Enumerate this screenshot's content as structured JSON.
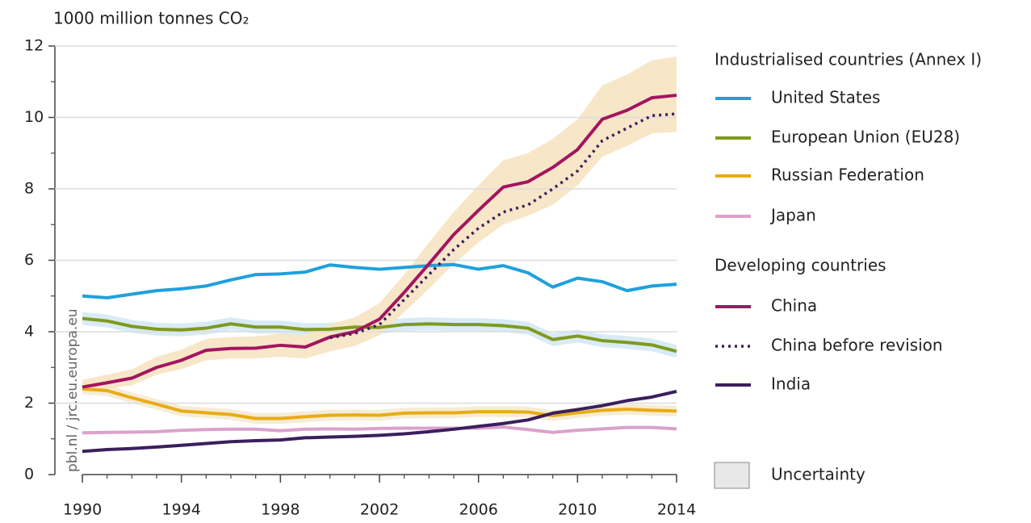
{
  "chart_data": {
    "type": "line",
    "ylabel": "1000 million tonnes CO₂",
    "source": "pbl.nl / jrc.eu.europa.eu",
    "legend_groups": [
      "Industrialised countries (Annex I)",
      "Developing countries"
    ],
    "uncertainty_label": "Uncertainty",
    "x": [
      1990,
      1991,
      1992,
      1993,
      1994,
      1995,
      1996,
      1997,
      1998,
      1999,
      2000,
      2001,
      2002,
      2003,
      2004,
      2005,
      2006,
      2007,
      2008,
      2009,
      2010,
      2011,
      2012,
      2013,
      2014
    ],
    "xlim": [
      1990,
      2014
    ],
    "xticks": [
      1990,
      1994,
      1998,
      2002,
      2006,
      2010,
      2014
    ],
    "ylim": [
      0,
      12
    ],
    "yticks": [
      0,
      2,
      4,
      6,
      8,
      10,
      12
    ],
    "grid": true,
    "series": [
      {
        "name": "United States",
        "color": "#1ea1dc",
        "values": [
          5.0,
          4.95,
          5.05,
          5.15,
          5.2,
          5.28,
          5.45,
          5.6,
          5.62,
          5.67,
          5.87,
          5.8,
          5.75,
          5.8,
          5.85,
          5.88,
          5.75,
          5.85,
          5.65,
          5.25,
          5.5,
          5.4,
          5.15,
          5.28,
          5.33
        ]
      },
      {
        "name": "European Union (EU28)",
        "color": "#7f9a1e",
        "band_color": "#d8ebf6",
        "values": [
          4.37,
          4.3,
          4.15,
          4.07,
          4.05,
          4.1,
          4.22,
          4.13,
          4.13,
          4.06,
          4.07,
          4.13,
          4.12,
          4.2,
          4.22,
          4.2,
          4.2,
          4.17,
          4.1,
          3.78,
          3.88,
          3.75,
          3.7,
          3.63,
          3.45
        ],
        "upper": [
          4.55,
          4.48,
          4.33,
          4.25,
          4.23,
          4.28,
          4.4,
          4.31,
          4.31,
          4.24,
          4.25,
          4.31,
          4.3,
          4.38,
          4.4,
          4.38,
          4.38,
          4.35,
          4.28,
          3.96,
          4.06,
          3.93,
          3.88,
          3.81,
          3.63
        ],
        "lower": [
          4.19,
          4.12,
          3.97,
          3.89,
          3.87,
          3.92,
          4.04,
          3.95,
          3.95,
          3.88,
          3.89,
          3.95,
          3.94,
          4.02,
          4.04,
          4.02,
          4.02,
          3.99,
          3.92,
          3.6,
          3.7,
          3.57,
          3.52,
          3.45,
          3.27
        ]
      },
      {
        "name": "Russian Federation",
        "color": "#e8ac16",
        "band_color": "#f6ecd6",
        "values": [
          2.4,
          2.35,
          2.15,
          1.97,
          1.78,
          1.73,
          1.68,
          1.57,
          1.57,
          1.62,
          1.66,
          1.67,
          1.66,
          1.72,
          1.73,
          1.73,
          1.76,
          1.76,
          1.75,
          1.65,
          1.73,
          1.8,
          1.83,
          1.8,
          1.78
        ],
        "upper": [
          2.55,
          2.5,
          2.3,
          2.12,
          1.93,
          1.88,
          1.83,
          1.72,
          1.72,
          1.77,
          1.81,
          1.82,
          1.81,
          1.87,
          1.88,
          1.88,
          1.91,
          1.91,
          1.9,
          1.8,
          1.88,
          1.95,
          1.98,
          1.95,
          1.93
        ],
        "lower": [
          2.25,
          2.2,
          2.0,
          1.82,
          1.63,
          1.58,
          1.53,
          1.42,
          1.42,
          1.47,
          1.51,
          1.52,
          1.51,
          1.57,
          1.58,
          1.58,
          1.61,
          1.61,
          1.6,
          1.5,
          1.58,
          1.65,
          1.68,
          1.65,
          1.63
        ]
      },
      {
        "name": "Japan",
        "color": "#dba2cb",
        "values": [
          1.17,
          1.18,
          1.19,
          1.2,
          1.24,
          1.26,
          1.27,
          1.27,
          1.23,
          1.27,
          1.28,
          1.27,
          1.29,
          1.3,
          1.3,
          1.3,
          1.3,
          1.33,
          1.26,
          1.18,
          1.24,
          1.28,
          1.32,
          1.32,
          1.28
        ]
      },
      {
        "name": "China",
        "color": "#a3155f",
        "band_color": "#f8e6c8",
        "values": [
          2.45,
          2.57,
          2.7,
          3.0,
          3.2,
          3.48,
          3.53,
          3.54,
          3.62,
          3.57,
          3.85,
          4.0,
          4.35,
          5.1,
          5.9,
          6.72,
          7.4,
          8.05,
          8.2,
          8.6,
          9.1,
          9.95,
          10.2,
          10.55,
          10.62
        ],
        "upper": [
          2.65,
          2.8,
          2.95,
          3.3,
          3.5,
          3.8,
          3.85,
          3.87,
          3.95,
          3.9,
          4.2,
          4.4,
          4.8,
          5.6,
          6.5,
          7.35,
          8.1,
          8.8,
          9.0,
          9.4,
          9.95,
          10.9,
          11.2,
          11.6,
          11.7
        ],
        "lower": [
          2.3,
          2.4,
          2.5,
          2.8,
          2.95,
          3.2,
          3.25,
          3.25,
          3.3,
          3.25,
          3.45,
          3.6,
          3.9,
          4.55,
          5.2,
          5.9,
          6.5,
          7.0,
          7.25,
          7.55,
          8.1,
          8.9,
          9.2,
          9.55,
          9.6
        ]
      },
      {
        "name": "China before revision",
        "color": "#3b1f5c",
        "dash": true,
        "values": [
          null,
          null,
          null,
          null,
          null,
          null,
          null,
          null,
          null,
          null,
          3.83,
          3.95,
          4.2,
          4.9,
          5.6,
          6.3,
          6.9,
          7.35,
          7.55,
          8.0,
          8.5,
          9.35,
          9.7,
          10.05,
          10.1
        ]
      },
      {
        "name": "India",
        "color": "#3b1f5c",
        "values": [
          0.65,
          0.7,
          0.73,
          0.77,
          0.82,
          0.87,
          0.92,
          0.95,
          0.97,
          1.03,
          1.05,
          1.07,
          1.1,
          1.14,
          1.2,
          1.27,
          1.35,
          1.43,
          1.53,
          1.72,
          1.82,
          1.93,
          2.07,
          2.17,
          2.33
        ]
      }
    ]
  }
}
